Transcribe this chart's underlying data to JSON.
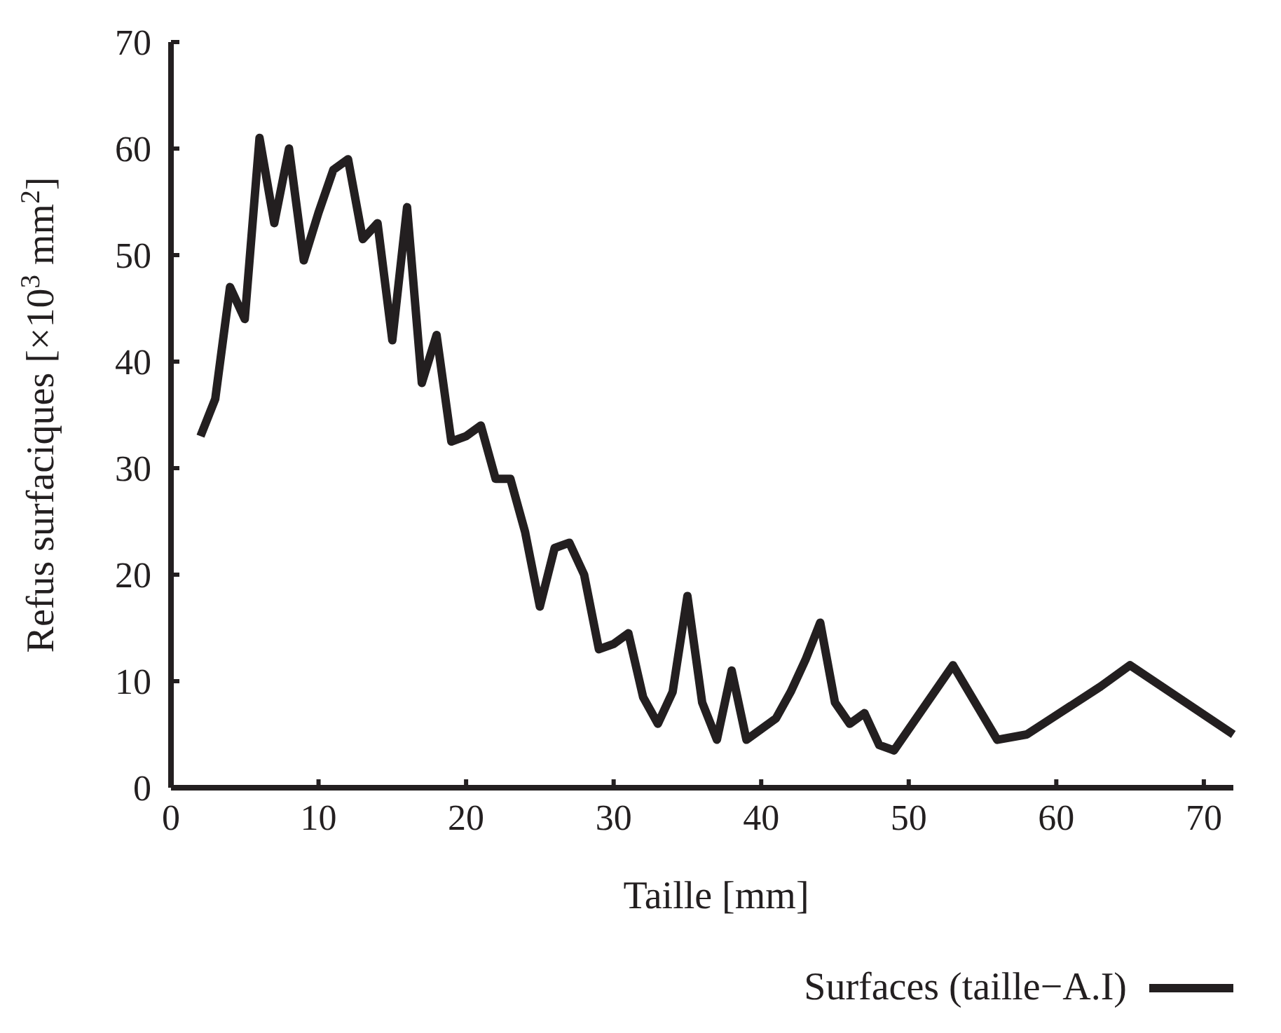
{
  "chart_data": {
    "type": "line",
    "xlabel": "Taille [mm]",
    "ylabel": "Refus surfaciques [×10$^{3}$ mm$^{2}$]",
    "xlim": [
      0,
      72
    ],
    "xticks": [
      0,
      10,
      20,
      30,
      40,
      50,
      60,
      70
    ],
    "ylim": [
      0,
      70
    ],
    "yticks": [
      0,
      10,
      20,
      30,
      40,
      50,
      60,
      70
    ],
    "grid": false,
    "legend": "bottom right",
    "marker": "none",
    "line_style": "solid",
    "series": [
      {
        "name": "Surfaces (taille−A.I)",
        "color": "#231f20",
        "x": [
          2,
          3,
          4,
          5,
          6,
          7,
          8,
          9,
          10,
          11,
          12,
          13,
          14,
          15,
          16,
          17,
          18,
          19,
          20,
          21,
          22,
          23,
          24,
          25,
          26,
          27,
          28,
          29,
          30,
          31,
          32,
          33,
          34,
          35,
          36,
          37,
          38,
          39,
          40,
          41,
          42,
          43,
          44,
          45,
          46,
          47,
          48,
          49,
          53,
          56,
          58,
          63,
          65,
          72
        ],
        "values": [
          33,
          36.5,
          47,
          44,
          61,
          53,
          60,
          49.5,
          54,
          58,
          59,
          51.5,
          53,
          42,
          54.5,
          38,
          42.5,
          32.5,
          33,
          34,
          29,
          29,
          24,
          17,
          22.5,
          23,
          20,
          13,
          13.5,
          14.5,
          8.5,
          6,
          9,
          18,
          8,
          4.5,
          11,
          4.5,
          5.5,
          6.5,
          9,
          12,
          15.5,
          8,
          6,
          7,
          4,
          3.5,
          11.5,
          4.5,
          5,
          9.5,
          11.5,
          5
        ]
      }
    ]
  }
}
